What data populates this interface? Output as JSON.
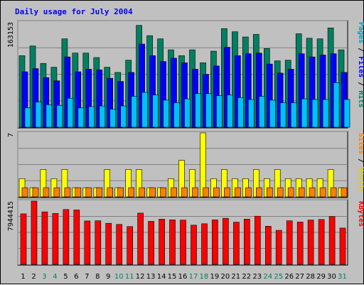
{
  "chart_data": {
    "type": "bar",
    "title": "Daily usage for July 2004",
    "categories": [
      "1",
      "2",
      "3",
      "4",
      "5",
      "6",
      "7",
      "8",
      "9",
      "10",
      "11",
      "12",
      "13",
      "14",
      "15",
      "16",
      "17",
      "18",
      "19",
      "20",
      "21",
      "22",
      "23",
      "24",
      "25",
      "26",
      "27",
      "28",
      "29",
      "30",
      "31"
    ],
    "weekend_days": [
      "3",
      "4",
      "10",
      "11",
      "17",
      "18",
      "24",
      "25",
      "31"
    ],
    "panels": [
      {
        "name": "hits-files-pages",
        "max_label": "163153",
        "ymax": 163153,
        "labels": [
          {
            "text": "Pages",
            "color": "#00a0c0",
            "sep": false
          },
          {
            "text": " / ",
            "color": "#000000",
            "sep": true
          },
          {
            "text": "Files",
            "color": "#0000ff",
            "sep": false
          },
          {
            "text": " / ",
            "color": "#000000",
            "sep": true
          },
          {
            "text": "Hits",
            "color": "#008060",
            "sep": false
          }
        ],
        "series": [
          {
            "name": "Hits",
            "color": "#008060",
            "values": [
              111000,
              126000,
              99000,
              93000,
              137000,
              115000,
              115000,
              108000,
              93000,
              85000,
              104000,
              158000,
              142000,
              137000,
              120000,
              111000,
              120000,
              100000,
              118000,
              153000,
              148000,
              140000,
              144000,
              122000,
              103000,
              104000,
              145000,
              138000,
              137000,
              154000,
              120000
            ]
          },
          {
            "name": "Files",
            "color": "#0000ff",
            "values": [
              86000,
              91000,
              77000,
              72000,
              109000,
              86000,
              90000,
              89000,
              76000,
              71000,
              85000,
              129000,
              111000,
              102000,
              107000,
              100000,
              90000,
              82000,
              95000,
              124000,
              111000,
              114000,
              115000,
              98000,
              84000,
              90000,
              114000,
              109000,
              112000,
              114000,
              85000
            ]
          },
          {
            "name": "Pages",
            "color": "#00c0ff",
            "values": [
              30000,
              39000,
              35000,
              34000,
              45000,
              30000,
              32000,
              33000,
              28000,
              33000,
              48000,
              54000,
              50000,
              42000,
              38000,
              44000,
              52000,
              52000,
              49000,
              50000,
              46000,
              43000,
              48000,
              42000,
              38000,
              38000,
              44000,
              43000,
              43000,
              69000,
              43000
            ]
          }
        ]
      },
      {
        "name": "visits-sites",
        "max_label": "7",
        "ymax": 7,
        "labels": [
          {
            "text": "Sites",
            "color": "#ff8000",
            "sep": false
          },
          {
            "text": " / ",
            "color": "#000000",
            "sep": true
          },
          {
            "text": "Visits",
            "color": "#e0d000",
            "sep": false
          }
        ],
        "series": [
          {
            "name": "Visits",
            "color": "#ffff00",
            "values": [
              2,
              1,
              3,
              2,
              3,
              1,
              1,
              1,
              3,
              1,
              3,
              3,
              1,
              1,
              2,
              4,
              3,
              7,
              2,
              3,
              2,
              2,
              3,
              2,
              3,
              2,
              2,
              2,
              2,
              3,
              1
            ]
          },
          {
            "name": "Sites",
            "color": "#ff8000",
            "values": [
              1,
              1,
              1,
              1,
              1,
              1,
              1,
              1,
              1,
              1,
              1,
              1,
              1,
              1,
              1,
              1,
              1,
              1,
              1,
              1,
              1,
              1,
              1,
              1,
              1,
              1,
              1,
              1,
              1,
              1,
              1
            ]
          }
        ]
      },
      {
        "name": "kbytes",
        "max_label": "7944415",
        "ymax": 7944415,
        "labels": [
          {
            "text": "KBytes",
            "color": "#ff0000",
            "sep": false
          }
        ],
        "series": [
          {
            "name": "KBytes",
            "color": "#ff0000",
            "values": [
              6350000,
              7940000,
              6600000,
              6400000,
              6890000,
              6840000,
              5450000,
              5480000,
              5160000,
              5020000,
              4750000,
              6440000,
              5410000,
              5680000,
              5600000,
              5560000,
              4930000,
              5110000,
              5600000,
              5780000,
              5300000,
              5690000,
              6050000,
              4790000,
              4280000,
              5470000,
              5320000,
              5570000,
              5640000,
              6020000,
              4560000
            ]
          }
        ]
      }
    ]
  }
}
